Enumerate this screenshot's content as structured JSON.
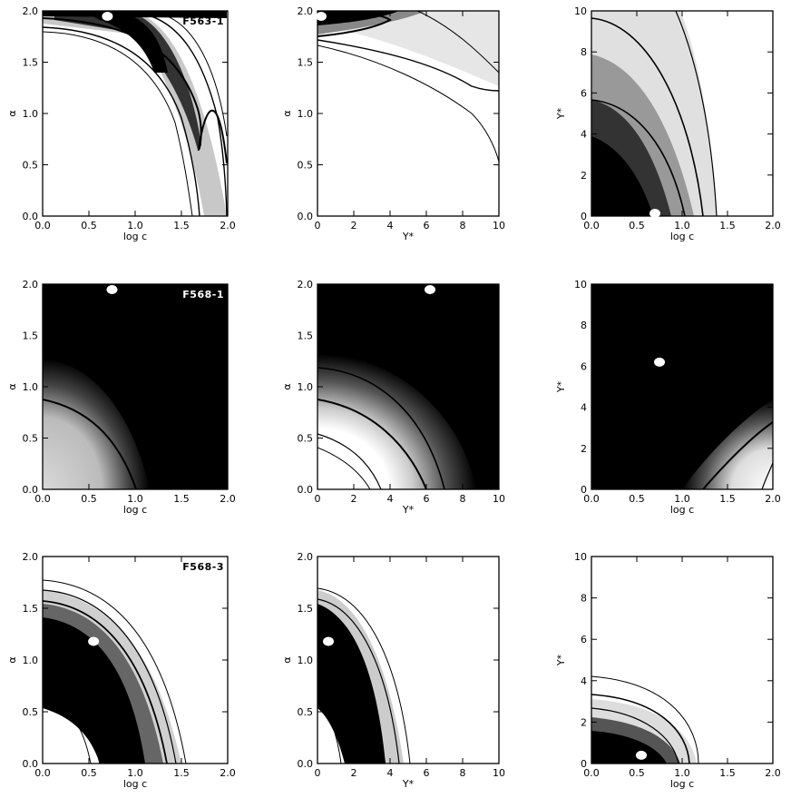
{
  "chart_data": [
    {
      "type": "heatmap",
      "panel_label": "F563-1",
      "xlabel": "log c",
      "ylabel": "α",
      "xlim": [
        0,
        2
      ],
      "ylim": [
        0,
        2
      ],
      "xticks": [
        "0.0",
        "0.5",
        "1.0",
        "1.5",
        "2.0"
      ],
      "yticks": [
        "0.0",
        "0.5",
        "1.0",
        "1.5",
        "2.0"
      ],
      "best_fit": {
        "x": 0.7,
        "y": 2.0
      }
    },
    {
      "type": "heatmap",
      "panel_label": "",
      "xlabel": "Υ*",
      "ylabel": "α",
      "xlim": [
        0,
        10
      ],
      "ylim": [
        0,
        2
      ],
      "xticks": [
        "0",
        "2",
        "4",
        "6",
        "8",
        "10"
      ],
      "yticks": [
        "0.0",
        "0.5",
        "1.0",
        "1.5",
        "2.0"
      ],
      "best_fit": {
        "x": 0.1,
        "y": 2.0
      }
    },
    {
      "type": "heatmap",
      "panel_label": "",
      "xlabel": "log c",
      "ylabel": "Υ*",
      "xlim": [
        0,
        2
      ],
      "ylim": [
        0,
        10
      ],
      "xticks": [
        "0.0",
        "0.5",
        "1.0",
        "1.5",
        "2.0"
      ],
      "yticks": [
        "0",
        "2",
        "4",
        "6",
        "8",
        "10"
      ],
      "best_fit": {
        "x": 0.7,
        "y": 0.0
      }
    },
    {
      "type": "heatmap",
      "panel_label": "F568-1",
      "xlabel": "log c",
      "ylabel": "α",
      "xlim": [
        0,
        2
      ],
      "ylim": [
        0,
        2
      ],
      "xticks": [
        "0.0",
        "0.5",
        "1.0",
        "1.5",
        "2.0"
      ],
      "yticks": [
        "0.0",
        "0.5",
        "1.0",
        "1.5",
        "2.0"
      ],
      "best_fit": {
        "x": 0.75,
        "y": 2.0
      }
    },
    {
      "type": "heatmap",
      "panel_label": "",
      "xlabel": "Υ*",
      "ylabel": "α",
      "xlim": [
        0,
        10
      ],
      "ylim": [
        0,
        2
      ],
      "xticks": [
        "0",
        "2",
        "4",
        "6",
        "8",
        "10"
      ],
      "yticks": [
        "0.0",
        "0.5",
        "1.0",
        "1.5",
        "2.0"
      ],
      "best_fit": {
        "x": 6.2,
        "y": 2.0
      }
    },
    {
      "type": "heatmap",
      "panel_label": "",
      "xlabel": "log c",
      "ylabel": "Υ*",
      "xlim": [
        0,
        2
      ],
      "ylim": [
        0,
        10
      ],
      "xticks": [
        "0.0",
        "0.5",
        "1.0",
        "1.5",
        "2.0"
      ],
      "yticks": [
        "0",
        "2",
        "4",
        "6",
        "8",
        "10"
      ],
      "best_fit": {
        "x": 0.75,
        "y": 6.2
      }
    },
    {
      "type": "heatmap",
      "panel_label": "F568-3",
      "xlabel": "log c",
      "ylabel": "α",
      "xlim": [
        0,
        2
      ],
      "ylim": [
        0,
        2
      ],
      "xticks": [
        "0.0",
        "0.5",
        "1.0",
        "1.5",
        "2.0"
      ],
      "yticks": [
        "0.0",
        "0.5",
        "1.0",
        "1.5",
        "2.0"
      ],
      "best_fit": {
        "x": 0.55,
        "y": 1.18
      }
    },
    {
      "type": "heatmap",
      "panel_label": "",
      "xlabel": "Υ*",
      "ylabel": "α",
      "xlim": [
        0,
        10
      ],
      "ylim": [
        0,
        2
      ],
      "xticks": [
        "0",
        "2",
        "4",
        "6",
        "8",
        "10"
      ],
      "yticks": [
        "0.0",
        "0.5",
        "1.0",
        "1.5",
        "2.0"
      ],
      "best_fit": {
        "x": 0.6,
        "y": 1.18
      }
    },
    {
      "type": "heatmap",
      "panel_label": "",
      "xlabel": "log c",
      "ylabel": "Υ*",
      "xlim": [
        0,
        2
      ],
      "ylim": [
        0,
        10
      ],
      "xticks": [
        "0.0",
        "0.5",
        "1.0",
        "1.5",
        "2.0"
      ],
      "yticks": [
        "0",
        "2",
        "4",
        "6",
        "8",
        "10"
      ],
      "best_fit": {
        "x": 0.55,
        "y": 0.4
      }
    }
  ]
}
